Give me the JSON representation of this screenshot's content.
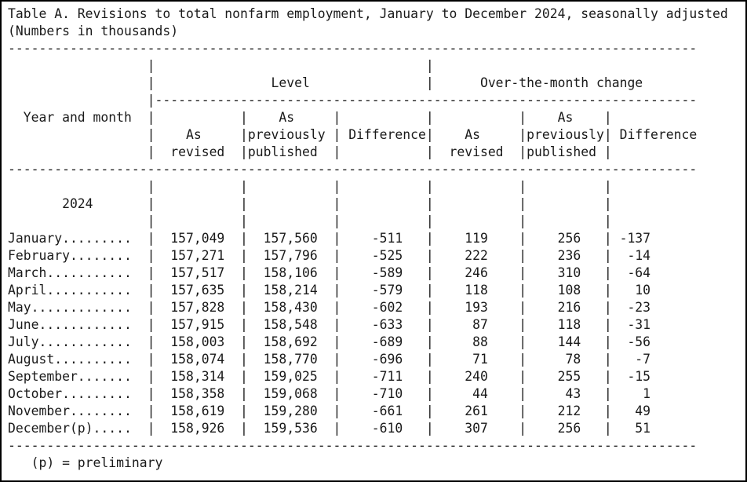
{
  "title": "Table A. Revisions to total nonfarm employment, January to December 2024, seasonally adjusted",
  "subtitle": "(Numbers in thousands)",
  "footnote": "(p) = preliminary",
  "table": {
    "row_header": "Year and month",
    "year_label": "2024",
    "groups": [
      {
        "label": "Level"
      },
      {
        "label": "Over-the-month change"
      }
    ],
    "subcolumns": {
      "revised_words": [
        "As",
        "revised"
      ],
      "published_words": [
        "As",
        "previously",
        "published"
      ],
      "difference_label": "Difference"
    },
    "rows": [
      {
        "month": "January",
        "level_revised": "157,049",
        "level_published": "157,560",
        "level_difference": "-511",
        "change_revised": "119",
        "change_published": "256",
        "change_difference": "-137"
      },
      {
        "month": "February",
        "level_revised": "157,271",
        "level_published": "157,796",
        "level_difference": "-525",
        "change_revised": "222",
        "change_published": "236",
        "change_difference": "-14"
      },
      {
        "month": "March",
        "level_revised": "157,517",
        "level_published": "158,106",
        "level_difference": "-589",
        "change_revised": "246",
        "change_published": "310",
        "change_difference": "-64"
      },
      {
        "month": "April",
        "level_revised": "157,635",
        "level_published": "158,214",
        "level_difference": "-579",
        "change_revised": "118",
        "change_published": "108",
        "change_difference": "10"
      },
      {
        "month": "May",
        "level_revised": "157,828",
        "level_published": "158,430",
        "level_difference": "-602",
        "change_revised": "193",
        "change_published": "216",
        "change_difference": "-23"
      },
      {
        "month": "June",
        "level_revised": "157,915",
        "level_published": "158,548",
        "level_difference": "-633",
        "change_revised": "87",
        "change_published": "118",
        "change_difference": "-31"
      },
      {
        "month": "July",
        "level_revised": "158,003",
        "level_published": "158,692",
        "level_difference": "-689",
        "change_revised": "88",
        "change_published": "144",
        "change_difference": "-56"
      },
      {
        "month": "August",
        "level_revised": "158,074",
        "level_published": "158,770",
        "level_difference": "-696",
        "change_revised": "71",
        "change_published": "78",
        "change_difference": "-7"
      },
      {
        "month": "September",
        "level_revised": "158,314",
        "level_published": "159,025",
        "level_difference": "-711",
        "change_revised": "240",
        "change_published": "255",
        "change_difference": "-15"
      },
      {
        "month": "October",
        "level_revised": "158,358",
        "level_published": "159,068",
        "level_difference": "-710",
        "change_revised": "44",
        "change_published": "43",
        "change_difference": "1"
      },
      {
        "month": "November",
        "level_revised": "158,619",
        "level_published": "159,280",
        "level_difference": "-661",
        "change_revised": "261",
        "change_published": "212",
        "change_difference": "49"
      },
      {
        "month": "December(p)",
        "level_revised": "158,926",
        "level_published": "159,536",
        "level_difference": "-610",
        "change_revised": "307",
        "change_published": "256",
        "change_difference": "51"
      }
    ]
  }
}
